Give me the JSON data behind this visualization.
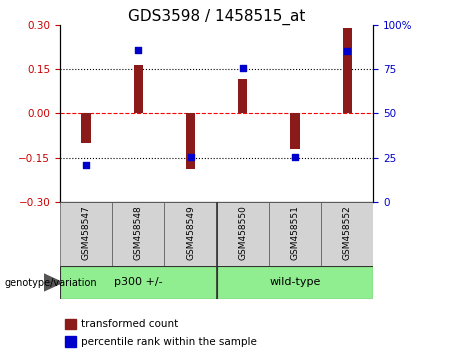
{
  "title": "GDS3598 / 1458515_at",
  "samples": [
    "GSM458547",
    "GSM458548",
    "GSM458549",
    "GSM458550",
    "GSM458551",
    "GSM458552"
  ],
  "red_values": [
    -0.1,
    0.165,
    -0.19,
    0.115,
    -0.12,
    0.29
  ],
  "blue_values": [
    -0.175,
    0.215,
    -0.148,
    0.155,
    -0.148,
    0.21
  ],
  "groups": [
    {
      "label": "p300 +/-",
      "start": 0,
      "end": 3,
      "color": "#90EE90"
    },
    {
      "label": "wild-type",
      "start": 3,
      "end": 6,
      "color": "#90EE90"
    }
  ],
  "group_divider": 3,
  "ylim_left": [
    -0.3,
    0.3
  ],
  "ylim_right": [
    0,
    100
  ],
  "yticks_left": [
    -0.3,
    -0.15,
    0,
    0.15,
    0.3
  ],
  "yticks_right": [
    0,
    25,
    50,
    75,
    100
  ],
  "hlines": [
    -0.15,
    0,
    0.15
  ],
  "hline_styles": [
    "dotted",
    "dashed",
    "dotted"
  ],
  "hline_colors": [
    "black",
    "red",
    "black"
  ],
  "bar_color": "#8B1A1A",
  "dot_color": "#0000CD",
  "bar_width": 0.18,
  "genotype_label": "genotype/variation",
  "legend_items": [
    {
      "label": "transformed count",
      "color": "#8B1A1A"
    },
    {
      "label": "percentile rank within the sample",
      "color": "#0000CD"
    }
  ],
  "left_tick_color": "#CC0000",
  "right_tick_color": "#0000CD",
  "title_fontsize": 11,
  "tick_fontsize": 7.5,
  "sample_fontsize": 6.5,
  "group_fontsize": 8,
  "legend_fontsize": 7.5
}
